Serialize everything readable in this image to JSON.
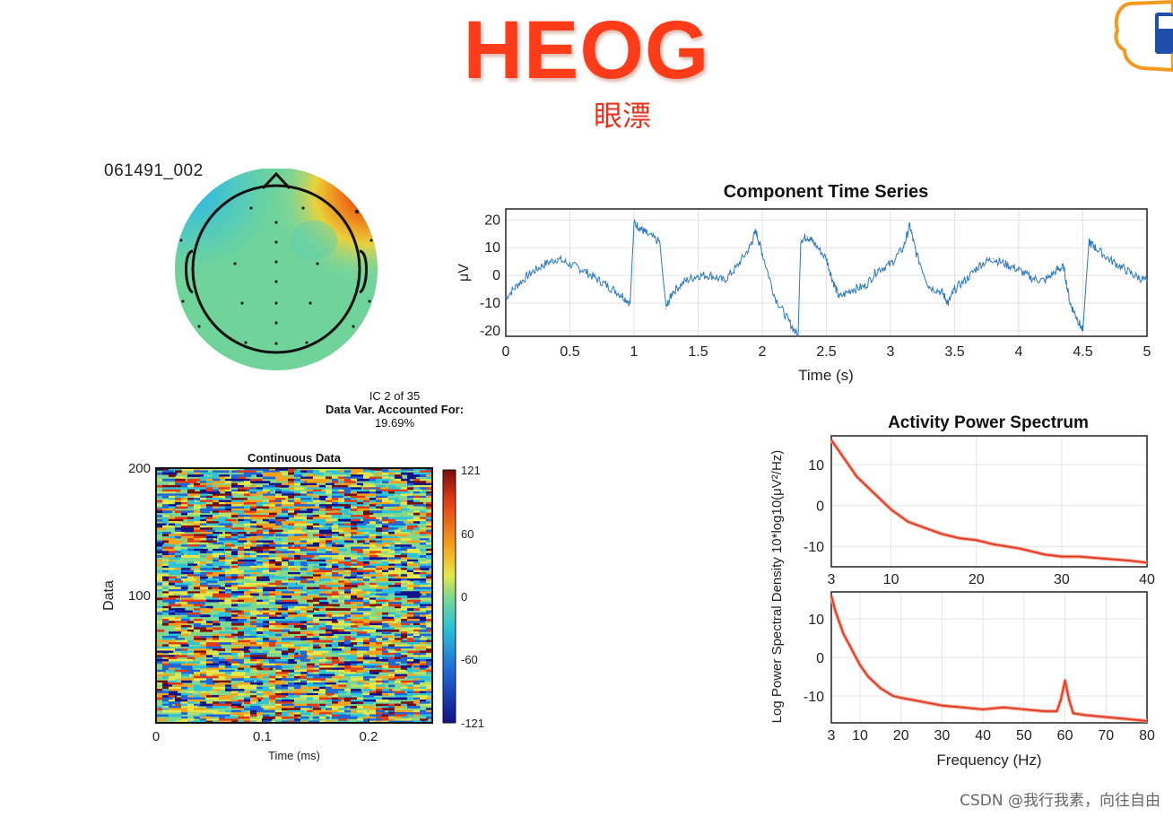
{
  "header": {
    "title": "HEOG",
    "subtitle": "眼漂",
    "watermark": "CSDN @我行我素，向往自由"
  },
  "topomap": {
    "label": "061491_002",
    "ic_info": "IC 2 of 35",
    "var_label": "Data Var. Accounted For:",
    "var_value": "19.69%"
  },
  "colors": {
    "trace": "#2b78c2",
    "spectrum": "#e0321c",
    "title_red": "#ff3c1a"
  },
  "chart_data": [
    {
      "type": "line",
      "title": "Component Time Series",
      "xlabel": "Time (s)",
      "ylabel": "μV",
      "xlim": [
        0,
        5
      ],
      "ylim": [
        -22,
        24
      ],
      "xticks": [
        "0",
        "0.5",
        "1",
        "1.5",
        "2",
        "2.5",
        "3",
        "3.5",
        "4",
        "4.5",
        "5"
      ],
      "yticks": [
        "20",
        "10",
        "0",
        "-10",
        "-20"
      ],
      "grid": true,
      "series": [
        {
          "x": [
            0,
            0.1,
            0.2,
            0.3,
            0.4,
            0.5,
            0.6,
            0.7,
            0.8,
            0.9,
            0.97,
            1.0,
            1.05,
            1.1,
            1.2,
            1.25,
            1.3,
            1.4,
            1.5,
            1.6,
            1.7,
            1.8,
            1.9,
            1.95,
            2.0,
            2.1,
            2.2,
            2.28,
            2.3,
            2.35,
            2.4,
            2.5,
            2.55,
            2.6,
            2.7,
            2.8,
            2.9,
            3.0,
            3.1,
            3.15,
            3.2,
            3.3,
            3.4,
            3.45,
            3.5,
            3.6,
            3.7,
            3.8,
            3.9,
            4.0,
            4.1,
            4.2,
            4.3,
            4.35,
            4.4,
            4.45,
            4.5,
            4.55,
            4.6,
            4.7,
            4.8,
            4.9,
            5.0
          ],
          "values": [
            -8,
            -3,
            1,
            4,
            6,
            4,
            2,
            -1,
            -4,
            -7,
            -10,
            19,
            17,
            15,
            12,
            -12,
            -6,
            -2,
            0,
            0,
            -2,
            3,
            10,
            16,
            8,
            -8,
            -16,
            -22,
            13,
            14,
            12,
            6,
            -2,
            -8,
            -5,
            -4,
            2,
            4,
            10,
            18,
            8,
            -4,
            -6,
            -10,
            -5,
            -1,
            4,
            6,
            4,
            2,
            -1,
            -2,
            2,
            3,
            -10,
            -15,
            -20,
            12,
            10,
            6,
            3,
            0,
            -2
          ]
        }
      ]
    },
    {
      "type": "heatmap",
      "title": "Continuous Data",
      "xlabel": "Time (ms)",
      "ylabel": "Data",
      "xlim": [
        0,
        0.26
      ],
      "ylim": [
        0,
        200
      ],
      "xticks": [
        "0",
        "0.1",
        "0.2"
      ],
      "yticks": [
        "200",
        "100"
      ],
      "colorbar": {
        "min": -121,
        "max": 121,
        "ticks": [
          "121",
          "60",
          "0",
          "-60",
          "-121"
        ]
      }
    },
    {
      "type": "line",
      "title": "Activity Power Spectrum",
      "xlabel": "",
      "ylabel": "",
      "xlim": [
        3,
        40
      ],
      "ylim": [
        -15,
        17
      ],
      "xticks": [
        "3",
        "10",
        "20",
        "30",
        "40"
      ],
      "yticks": [
        "10",
        "0",
        "-10"
      ],
      "grid": true,
      "series": [
        {
          "x": [
            3,
            4,
            5,
            6,
            7,
            8,
            9,
            10,
            12,
            14,
            16,
            18,
            20,
            22,
            25,
            28,
            30,
            32,
            35,
            38,
            40
          ],
          "values": [
            16,
            13,
            10,
            7,
            5,
            3,
            1,
            -1,
            -4,
            -5.5,
            -7,
            -8,
            -8.5,
            -9.5,
            -10.5,
            -12,
            -12.5,
            -12.5,
            -13,
            -13.5,
            -14
          ]
        }
      ]
    },
    {
      "type": "line",
      "title": "",
      "xlabel": "Frequency (Hz)",
      "ylabel": "Log Power Spectral Density 10*log10(μV²/Hz)",
      "xlim": [
        3,
        80
      ],
      "ylim": [
        -17,
        17
      ],
      "xticks": [
        "3",
        "10",
        "20",
        "30",
        "40",
        "50",
        "60",
        "70",
        "80"
      ],
      "yticks": [
        "10",
        "0",
        "-10"
      ],
      "grid": true,
      "series": [
        {
          "x": [
            3,
            4,
            5,
            6,
            7,
            8,
            9,
            10,
            12,
            15,
            18,
            20,
            25,
            30,
            35,
            40,
            45,
            50,
            55,
            58,
            59,
            60,
            61,
            62,
            65,
            70,
            75,
            80
          ],
          "values": [
            16,
            12,
            9,
            6,
            4,
            2,
            0,
            -2,
            -5,
            -8,
            -10,
            -10.5,
            -11.5,
            -12.5,
            -13,
            -13.5,
            -13,
            -13.5,
            -14,
            -14,
            -11,
            -6,
            -11,
            -14.5,
            -15,
            -15.5,
            -16,
            -16.5
          ]
        }
      ]
    }
  ]
}
